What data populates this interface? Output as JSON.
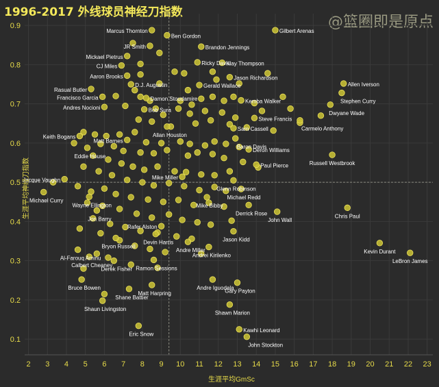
{
  "watermark": "@篮圈即是原点",
  "chart_data": {
    "type": "scatter",
    "title": "1996-2017 外线球员神经刀指数",
    "xlabel": "生涯平均GmSc",
    "ylabel": "生涯平均神经刀指数",
    "xlim": [
      1.8,
      23.3
    ],
    "ylim": [
      0.06,
      0.93
    ],
    "xticks": [
      2,
      3,
      4,
      5,
      6,
      7,
      8,
      9,
      10,
      11,
      12,
      13,
      14,
      15,
      16,
      17,
      18,
      19,
      20,
      21,
      22,
      23
    ],
    "yticks": [
      0.1,
      0.2,
      0.3,
      0.4,
      0.5,
      0.6,
      0.7,
      0.8,
      0.9
    ],
    "ref_x": 9.4,
    "ref_y": 0.5,
    "colors": {
      "background": "#2b2b2b",
      "point": "#c8c034",
      "point_edge": "#ede25a",
      "text": "#ffffff",
      "axis_text": "#e8dc4a",
      "grid": "#3b3b3b"
    },
    "labeled": [
      {
        "name": "Marcus Thornton",
        "x": 8.5,
        "y": 0.888
      },
      {
        "name": "Ben Gordon",
        "x": 9.3,
        "y": 0.875
      },
      {
        "name": "Gilbert Arenas",
        "x": 15.0,
        "y": 0.888
      },
      {
        "name": "JR Smith",
        "x": 8.4,
        "y": 0.848
      },
      {
        "name": "Brandon Jennings",
        "x": 11.1,
        "y": 0.846
      },
      {
        "name": "Mickael Pietrus",
        "x": 7.2,
        "y": 0.822
      },
      {
        "name": "Ricky Davis",
        "x": 10.9,
        "y": 0.806
      },
      {
        "name": "Klay Thompson",
        "x": 12.2,
        "y": 0.805
      },
      {
        "name": "CJ Miles",
        "x": 6.9,
        "y": 0.798
      },
      {
        "name": "Aaron Brooks",
        "x": 7.2,
        "y": 0.772
      },
      {
        "name": "Jason Richardson",
        "x": 12.6,
        "y": 0.768
      },
      {
        "name": "D.J. Augustin",
        "x": 7.4,
        "y": 0.75
      },
      {
        "name": "Gerald Wallace",
        "x": 11.0,
        "y": 0.748
      },
      {
        "name": "Allen Iverson",
        "x": 18.6,
        "y": 0.752
      },
      {
        "name": "Rasual Butler",
        "x": 5.3,
        "y": 0.738
      },
      {
        "name": "Stephen Curry",
        "x": 18.5,
        "y": 0.728
      },
      {
        "name": "Francisco Garcia",
        "x": 5.9,
        "y": 0.718
      },
      {
        "name": "Damon Stoudamire",
        "x": 8.2,
        "y": 0.715
      },
      {
        "name": "Kemba Walker",
        "x": 13.2,
        "y": 0.709
      },
      {
        "name": "Dwyane Wade",
        "x": 17.9,
        "y": 0.698
      },
      {
        "name": "Andres Nocioni",
        "x": 6.0,
        "y": 0.692
      },
      {
        "name": "Bob Sura",
        "x": 8.1,
        "y": 0.686
      },
      {
        "name": "Steve Francis",
        "x": 13.9,
        "y": 0.664
      },
      {
        "name": "Carmelo Anthony",
        "x": 16.3,
        "y": 0.658
      },
      {
        "name": "Allan Houston",
        "x": 9.3,
        "y": 0.642
      },
      {
        "name": "Sam Cassell",
        "x": 12.8,
        "y": 0.638
      },
      {
        "name": "Keith Bogans",
        "x": 4.7,
        "y": 0.618
      },
      {
        "name": "Baron Davis",
        "x": 12.9,
        "y": 0.612
      },
      {
        "name": "Matt Barnes",
        "x": 7.2,
        "y": 0.608
      },
      {
        "name": "Eddie House",
        "x": 5.1,
        "y": 0.588
      },
      {
        "name": "Deron Williams",
        "x": 13.6,
        "y": 0.584
      },
      {
        "name": "Russell Westbrook",
        "x": 18.0,
        "y": 0.57
      },
      {
        "name": "Paul Pierce",
        "x": 14.0,
        "y": 0.545
      },
      {
        "name": "Jacque Vaughn",
        "x": 3.9,
        "y": 0.508
      },
      {
        "name": "Mike Miller",
        "x": 10.1,
        "y": 0.514
      },
      {
        "name": "Glenn Robinson",
        "x": 12.8,
        "y": 0.505
      },
      {
        "name": "Michael Curry",
        "x": 2.8,
        "y": 0.475
      },
      {
        "name": "Michael Redd",
        "x": 13.2,
        "y": 0.483
      },
      {
        "name": "Mike Bibby",
        "x": 11.4,
        "y": 0.462
      },
      {
        "name": "Wayne Ellington",
        "x": 5.2,
        "y": 0.463
      },
      {
        "name": "Derrick Rose",
        "x": 13.6,
        "y": 0.442
      },
      {
        "name": "John Wall",
        "x": 15.1,
        "y": 0.425
      },
      {
        "name": "Chris Paul",
        "x": 18.8,
        "y": 0.435
      },
      {
        "name": "Jon Barry",
        "x": 5.6,
        "y": 0.428
      },
      {
        "name": "Rafer Alston",
        "x": 9.0,
        "y": 0.388
      },
      {
        "name": "Jason Kidd",
        "x": 12.8,
        "y": 0.375
      },
      {
        "name": "Devin Harris",
        "x": 8.7,
        "y": 0.368
      },
      {
        "name": "Bryon Russell",
        "x": 6.6,
        "y": 0.358
      },
      {
        "name": "Andre Miller",
        "x": 10.4,
        "y": 0.348
      },
      {
        "name": "Kevin Durant",
        "x": 20.5,
        "y": 0.345
      },
      {
        "name": "Al-Farouq Aminu",
        "x": 4.6,
        "y": 0.328
      },
      {
        "name": "LeBron James",
        "x": 22.1,
        "y": 0.32
      },
      {
        "name": "Andrei Kirilenko",
        "x": 11.5,
        "y": 0.335
      },
      {
        "name": "Calbert Cheaney",
        "x": 5.2,
        "y": 0.31
      },
      {
        "name": "Derek Fisher",
        "x": 6.5,
        "y": 0.3
      },
      {
        "name": "Ramon Sessions",
        "x": 8.6,
        "y": 0.302
      },
      {
        "name": "Bruce Bowen",
        "x": 4.8,
        "y": 0.252
      },
      {
        "name": "Andre Iguodala",
        "x": 11.7,
        "y": 0.252
      },
      {
        "name": "Gary Payton",
        "x": 13.0,
        "y": 0.244
      },
      {
        "name": "Matt Harpring",
        "x": 8.5,
        "y": 0.238
      },
      {
        "name": "Shane Battier",
        "x": 7.3,
        "y": 0.228
      },
      {
        "name": "Shaun Livingston",
        "x": 5.9,
        "y": 0.198
      },
      {
        "name": "Shawn Marion",
        "x": 12.6,
        "y": 0.188
      },
      {
        "name": "Eric Snow",
        "x": 7.8,
        "y": 0.134
      },
      {
        "name": "Kawhi Leonard",
        "x": 13.1,
        "y": 0.125
      },
      {
        "name": "John Stockton",
        "x": 13.5,
        "y": 0.106
      }
    ],
    "unlabeled": [
      [
        7.5,
        0.855
      ],
      [
        8.9,
        0.83
      ],
      [
        7.9,
        0.802
      ],
      [
        9.7,
        0.782
      ],
      [
        10.2,
        0.778
      ],
      [
        7.9,
        0.775
      ],
      [
        11.7,
        0.782
      ],
      [
        14.6,
        0.778
      ],
      [
        8.9,
        0.752
      ],
      [
        10.4,
        0.735
      ],
      [
        11.9,
        0.762
      ],
      [
        13.1,
        0.752
      ],
      [
        7.6,
        0.735
      ],
      [
        7.9,
        0.718
      ],
      [
        8.4,
        0.708
      ],
      [
        10.0,
        0.708
      ],
      [
        10.6,
        0.698
      ],
      [
        11.1,
        0.713
      ],
      [
        11.7,
        0.718
      ],
      [
        12.3,
        0.708
      ],
      [
        12.8,
        0.718
      ],
      [
        13.9,
        0.702
      ],
      [
        15.4,
        0.718
      ],
      [
        6.6,
        0.72
      ],
      [
        7.1,
        0.695
      ],
      [
        8.7,
        0.688
      ],
      [
        9.1,
        0.672
      ],
      [
        9.9,
        0.688
      ],
      [
        10.5,
        0.675
      ],
      [
        11.3,
        0.682
      ],
      [
        12.2,
        0.678
      ],
      [
        12.9,
        0.665
      ],
      [
        14.3,
        0.682
      ],
      [
        15.8,
        0.688
      ],
      [
        16.3,
        0.652
      ],
      [
        17.4,
        0.67
      ],
      [
        7.8,
        0.66
      ],
      [
        8.5,
        0.655
      ],
      [
        9.5,
        0.642
      ],
      [
        10.8,
        0.65
      ],
      [
        11.6,
        0.658
      ],
      [
        12.6,
        0.648
      ],
      [
        13.5,
        0.64
      ],
      [
        14.9,
        0.632
      ],
      [
        4.9,
        0.628
      ],
      [
        5.5,
        0.622
      ],
      [
        6.1,
        0.618
      ],
      [
        6.8,
        0.622
      ],
      [
        7.6,
        0.628
      ],
      [
        8.2,
        0.602
      ],
      [
        9.0,
        0.6
      ],
      [
        10.0,
        0.604
      ],
      [
        10.5,
        0.598
      ],
      [
        11.3,
        0.594
      ],
      [
        11.8,
        0.604
      ],
      [
        12.4,
        0.598
      ],
      [
        13.1,
        0.59
      ],
      [
        4.4,
        0.6
      ],
      [
        5.8,
        0.598
      ],
      [
        6.5,
        0.592
      ],
      [
        7.0,
        0.58
      ],
      [
        7.9,
        0.576
      ],
      [
        8.6,
        0.574
      ],
      [
        9.3,
        0.582
      ],
      [
        10.4,
        0.568
      ],
      [
        10.9,
        0.576
      ],
      [
        11.7,
        0.572
      ],
      [
        12.3,
        0.562
      ],
      [
        13.3,
        0.552
      ],
      [
        14.1,
        0.538
      ],
      [
        5.4,
        0.568
      ],
      [
        6.2,
        0.558
      ],
      [
        6.9,
        0.548
      ],
      [
        7.5,
        0.54
      ],
      [
        8.1,
        0.532
      ],
      [
        8.8,
        0.54
      ],
      [
        9.7,
        0.528
      ],
      [
        10.3,
        0.526
      ],
      [
        11.1,
        0.52
      ],
      [
        11.8,
        0.518
      ],
      [
        12.6,
        0.528
      ],
      [
        4.9,
        0.54
      ],
      [
        5.7,
        0.528
      ],
      [
        6.4,
        0.518
      ],
      [
        7.2,
        0.506
      ],
      [
        8.0,
        0.5
      ],
      [
        8.6,
        0.492
      ],
      [
        9.4,
        0.498
      ],
      [
        10.2,
        0.49
      ],
      [
        11.0,
        0.48
      ],
      [
        11.8,
        0.488
      ],
      [
        12.4,
        0.478
      ],
      [
        3.3,
        0.5
      ],
      [
        4.6,
        0.49
      ],
      [
        5.3,
        0.476
      ],
      [
        6.0,
        0.484
      ],
      [
        6.6,
        0.47
      ],
      [
        7.4,
        0.462
      ],
      [
        8.3,
        0.456
      ],
      [
        9.1,
        0.45
      ],
      [
        9.9,
        0.455
      ],
      [
        10.7,
        0.442
      ],
      [
        11.5,
        0.448
      ],
      [
        12.3,
        0.438
      ],
      [
        5.1,
        0.448
      ],
      [
        5.9,
        0.44
      ],
      [
        6.8,
        0.432
      ],
      [
        7.7,
        0.42
      ],
      [
        8.5,
        0.41
      ],
      [
        9.4,
        0.418
      ],
      [
        10.1,
        0.404
      ],
      [
        10.9,
        0.398
      ],
      [
        11.6,
        0.392
      ],
      [
        12.7,
        0.402
      ],
      [
        5.4,
        0.408
      ],
      [
        6.3,
        0.394
      ],
      [
        7.1,
        0.386
      ],
      [
        7.9,
        0.376
      ],
      [
        8.8,
        0.372
      ],
      [
        9.8,
        0.362
      ],
      [
        10.6,
        0.356
      ],
      [
        4.7,
        0.382
      ],
      [
        5.8,
        0.37
      ],
      [
        6.8,
        0.352
      ],
      [
        7.6,
        0.338
      ],
      [
        8.4,
        0.33
      ],
      [
        9.2,
        0.322
      ],
      [
        11.1,
        0.318
      ],
      [
        5.6,
        0.318
      ],
      [
        6.2,
        0.308
      ],
      [
        7.4,
        0.29
      ],
      [
        8.8,
        0.282
      ],
      [
        4.9,
        0.28
      ],
      [
        6.0,
        0.215
      ]
    ]
  }
}
